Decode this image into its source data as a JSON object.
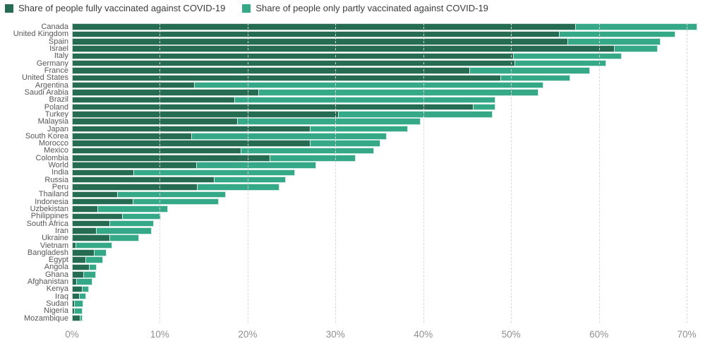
{
  "legend": {
    "fully_label": "Share of people fully vaccinated against COVID-19",
    "partly_label": "Share of people only partly vaccinated against COVID-19"
  },
  "colors": {
    "fully": "#256c52",
    "partly": "#34a887",
    "gridline": "#d8d8d8",
    "label_text": "#575757",
    "tick_text": "#8f8f8f"
  },
  "chart_data": {
    "type": "bar",
    "stacked": true,
    "orientation": "horizontal",
    "title": "",
    "xlabel": "",
    "ylabel": "",
    "xlim": [
      0,
      72.65
    ],
    "grid": "dashed-vertical",
    "legend_position": "top-left",
    "x_ticks": [
      "0%",
      "10%",
      "20%",
      "30%",
      "40%",
      "50%",
      "60%",
      "70%"
    ],
    "x_tick_values": [
      0,
      10,
      20,
      30,
      40,
      50,
      60,
      70
    ],
    "categories": [
      "Canada",
      "United Kingdom",
      "Spain",
      "Israel",
      "Italy",
      "Germany",
      "France",
      "United States",
      "Argentina",
      "Saudi Arabia",
      "Brazil",
      "Poland",
      "Turkey",
      "Malaysia",
      "Japan",
      "South Korea",
      "Morocco",
      "Mexico",
      "Colombia",
      "World",
      "India",
      "Russia",
      "Peru",
      "Thailand",
      "Indonesia",
      "Uzbekistan",
      "Philippines",
      "South Africa",
      "Iran",
      "Ukraine",
      "Vietnam",
      "Bangladesh",
      "Egypt",
      "Angola",
      "Ghana",
      "Afghanistan",
      "Kenya",
      "Iraq",
      "Sudan",
      "Nigeria",
      "Mozambique"
    ],
    "series": [
      {
        "name": "Share of people fully vaccinated against COVID-19",
        "color": "#256c52",
        "values": [
          57.4,
          55.5,
          56.5,
          61.8,
          50.3,
          50.5,
          45.3,
          48.9,
          14.0,
          21.3,
          18.6,
          45.7,
          30.4,
          18.9,
          27.2,
          13.7,
          27.2,
          19.3,
          22.6,
          14.2,
          7.1,
          16.2,
          14.3,
          5.2,
          7.0,
          3.0,
          5.8,
          4.3,
          2.8,
          4.3,
          0.5,
          2.6,
          1.6,
          2.0,
          1.4,
          0.6,
          1.2,
          0.9,
          0.3,
          0.3,
          1.0
        ]
      },
      {
        "name": "Share of people only partly vaccinated against COVID-19",
        "color": "#34a887",
        "values": [
          13.9,
          13.3,
          10.6,
          5.0,
          12.4,
          10.4,
          13.8,
          7.9,
          39.8,
          31.9,
          29.7,
          2.6,
          17.6,
          20.9,
          11.1,
          22.2,
          8.0,
          15.2,
          9.8,
          13.7,
          18.4,
          8.2,
          9.4,
          12.4,
          9.8,
          8.0,
          4.4,
          5.1,
          6.4,
          3.4,
          4.2,
          1.4,
          2.0,
          0.9,
          1.4,
          1.8,
          0.8,
          0.8,
          1.1,
          1.0,
          0.3
        ]
      }
    ]
  }
}
